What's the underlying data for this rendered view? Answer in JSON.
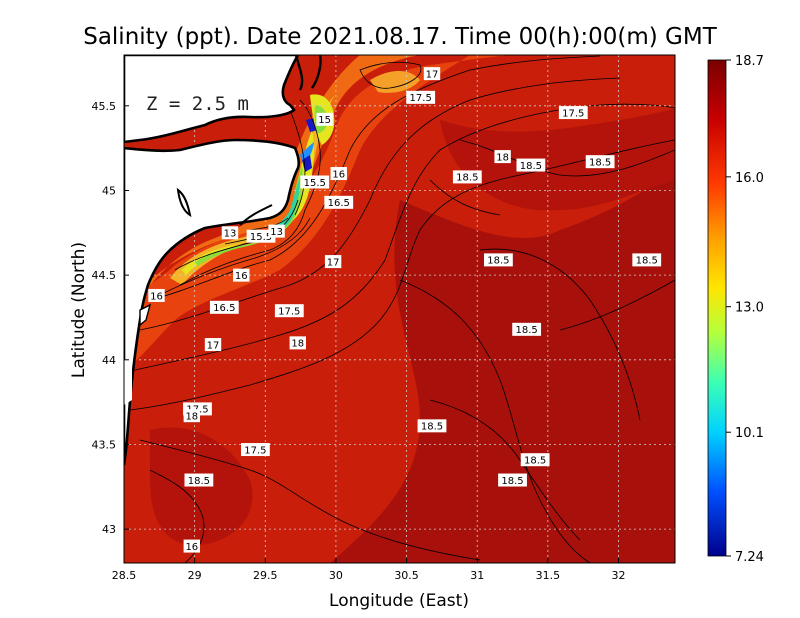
{
  "chart_data": {
    "type": "heatmap",
    "title": "Salinity (ppt). Date 2021.08.17. Time 00(h):00(m) GMT",
    "xlabel": "Longitude (East)",
    "ylabel": "Latitude (North)",
    "xlim": [
      28.5,
      32.4
    ],
    "ylim": [
      42.8,
      45.8
    ],
    "xticks": [
      28.5,
      29,
      29.5,
      30,
      30.5,
      31,
      31.5,
      32
    ],
    "xtick_labels": [
      "28.5",
      "29",
      "29.5",
      "30",
      "30.5",
      "31",
      "31.5",
      "32"
    ],
    "yticks": [
      43,
      43.5,
      44,
      44.5,
      45,
      45.5
    ],
    "ytick_labels": [
      "43",
      "43.5",
      "44",
      "44.5",
      "45",
      "45.5"
    ],
    "grid": true,
    "depth_label": "Z = 2.5 m",
    "colorbar": {
      "min": 7.24,
      "max": 18.7,
      "tick_values": [
        18.7,
        16.0,
        13.0,
        10.1,
        7.24
      ],
      "tick_labels": [
        "18.7",
        "16.0",
        "13.0",
        "10.1",
        "7.24"
      ]
    },
    "contour_labels": [
      {
        "text": "17",
        "lon": 30.68,
        "lat": 45.69
      },
      {
        "text": "17.5",
        "lon": 30.6,
        "lat": 45.55
      },
      {
        "text": "17.5",
        "lon": 31.68,
        "lat": 45.46
      },
      {
        "text": "15",
        "lon": 29.92,
        "lat": 45.42
      },
      {
        "text": "18",
        "lon": 31.18,
        "lat": 45.2
      },
      {
        "text": "18.5",
        "lon": 31.38,
        "lat": 45.15
      },
      {
        "text": "18.5",
        "lon": 31.87,
        "lat": 45.17
      },
      {
        "text": "18.5",
        "lon": 30.93,
        "lat": 45.08
      },
      {
        "text": "16",
        "lon": 30.02,
        "lat": 45.1
      },
      {
        "text": "15.5",
        "lon": 29.85,
        "lat": 45.05
      },
      {
        "text": "16.5",
        "lon": 30.02,
        "lat": 44.93
      },
      {
        "text": "13",
        "lon": 29.25,
        "lat": 44.75
      },
      {
        "text": "15.5",
        "lon": 29.47,
        "lat": 44.73
      },
      {
        "text": "13",
        "lon": 29.58,
        "lat": 44.76
      },
      {
        "text": "17",
        "lon": 29.98,
        "lat": 44.58
      },
      {
        "text": "18.5",
        "lon": 31.15,
        "lat": 44.59
      },
      {
        "text": "18.5",
        "lon": 32.2,
        "lat": 44.59
      },
      {
        "text": "16",
        "lon": 29.33,
        "lat": 44.5
      },
      {
        "text": "16",
        "lon": 28.73,
        "lat": 44.38
      },
      {
        "text": "16.5",
        "lon": 29.21,
        "lat": 44.31
      },
      {
        "text": "17.5",
        "lon": 29.67,
        "lat": 44.29
      },
      {
        "text": "18.5",
        "lon": 31.35,
        "lat": 44.18
      },
      {
        "text": "17",
        "lon": 29.13,
        "lat": 44.09
      },
      {
        "text": "18",
        "lon": 29.73,
        "lat": 44.1
      },
      {
        "text": "17.5",
        "lon": 29.02,
        "lat": 43.71
      },
      {
        "text": "18",
        "lon": 28.98,
        "lat": 43.67
      },
      {
        "text": "18.5",
        "lon": 30.68,
        "lat": 43.61
      },
      {
        "text": "17.5",
        "lon": 29.43,
        "lat": 43.47
      },
      {
        "text": "18.5",
        "lon": 31.41,
        "lat": 43.41
      },
      {
        "text": "18.5",
        "lon": 29.03,
        "lat": 43.29
      },
      {
        "text": "18.5",
        "lon": 31.25,
        "lat": 43.29
      },
      {
        "text": "16",
        "lon": 28.98,
        "lat": 42.9
      }
    ]
  },
  "colors": {
    "high": "#9b0d0b",
    "mid_high": "#c81a08",
    "mid": "#e8340e",
    "orange": "#f06a14",
    "yellow": "#e6e61e",
    "green": "#4fd25a",
    "cyan": "#18c8d8",
    "blue": "#1818d8",
    "land": "#ffffff",
    "coast": "#000000"
  }
}
